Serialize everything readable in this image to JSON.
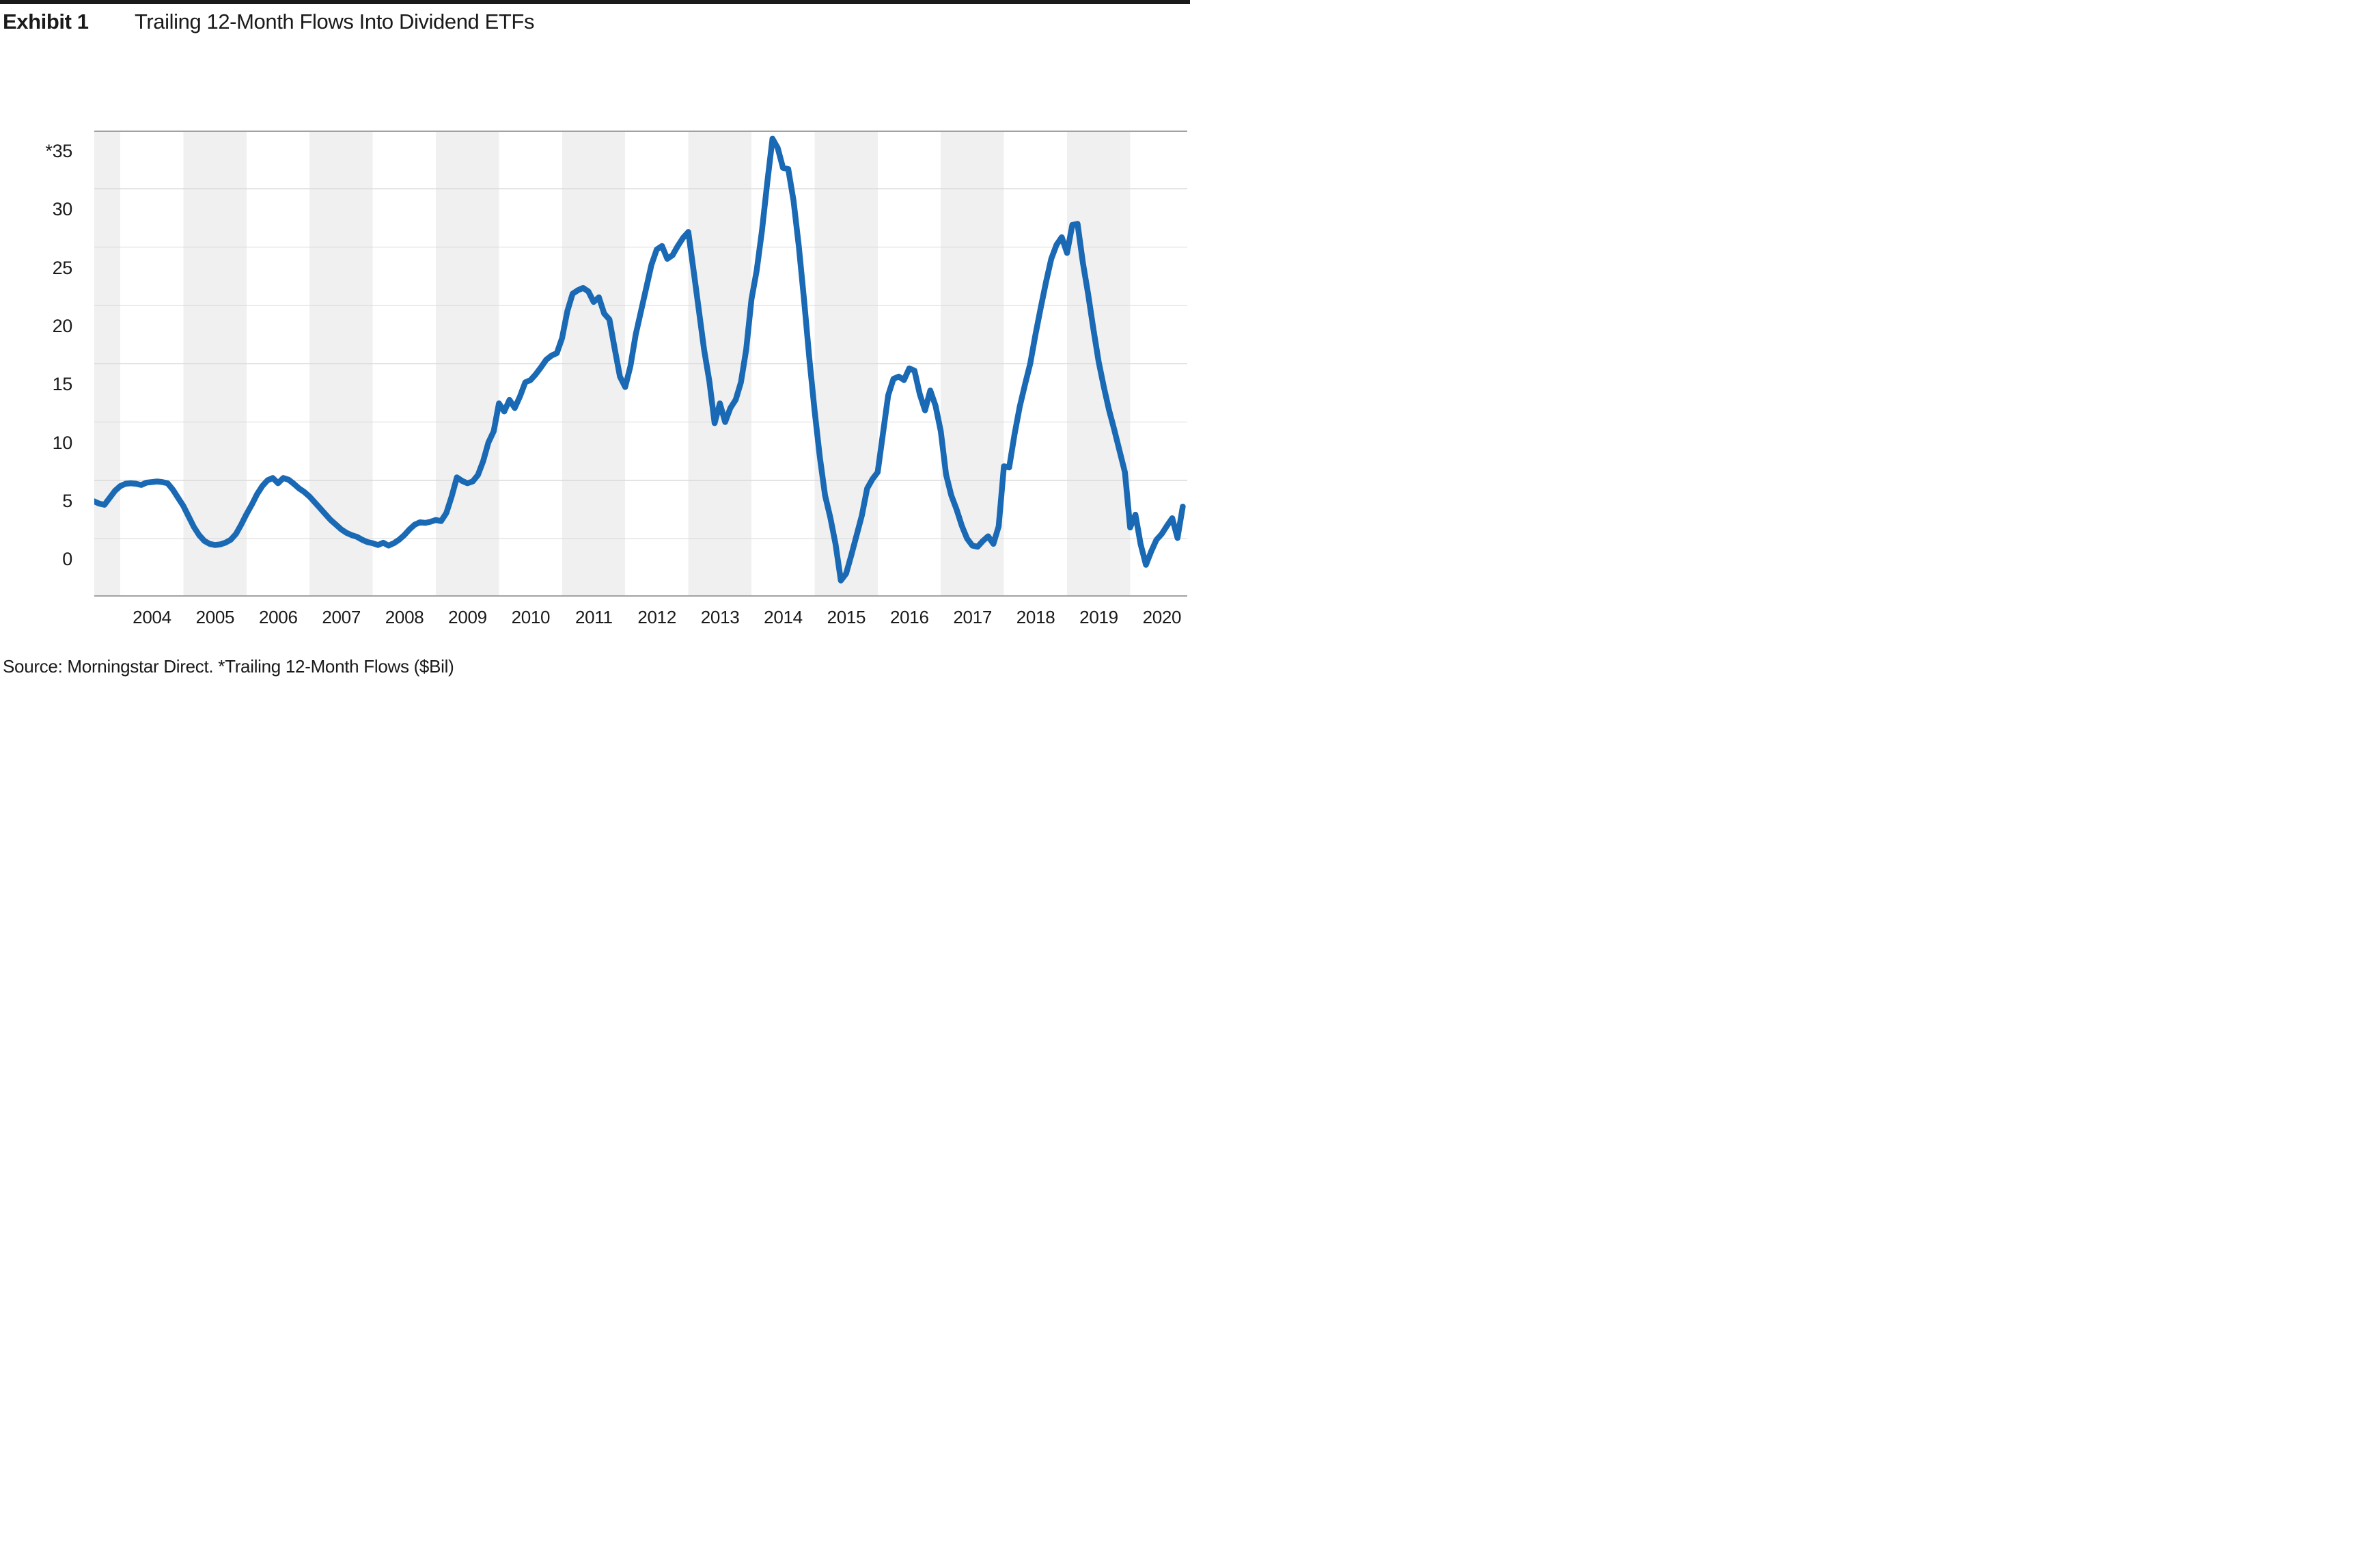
{
  "page": {
    "top_bar_color": "#1a1a1a",
    "background_color": "#ffffff"
  },
  "header": {
    "exhibit_label": "Exhibit 1",
    "title": "Trailing 12-Month Flows Into Dividend ETFs"
  },
  "source_note": "Source: Morningstar Direct. *Trailing 12-Month Flows ($Bil)",
  "chart_data": {
    "type": "line",
    "title": "Trailing 12-Month Flows Into Dividend ETFs",
    "unit": "$Bil",
    "xlabel": "",
    "ylabel": "Trailing 12-Month Flows ($Bil)",
    "ylim": [
      -5,
      35
    ],
    "y_tick_step": 5,
    "y_tick_labels": [
      "*35",
      "30",
      "25",
      "20",
      "15",
      "10",
      "5",
      "0"
    ],
    "x_tick_labels": [
      "2004",
      "2005",
      "2006",
      "2007",
      "2008",
      "2009",
      "2010",
      "2011",
      "2012",
      "2013",
      "2014",
      "2015",
      "2016",
      "2017",
      "2018",
      "2019",
      "2020"
    ],
    "grid": "horizontal",
    "alternating_year_bands": true,
    "tick_labels_below_gridlines": true,
    "legend": "none",
    "styles": {
      "line_color": "#1a69b4",
      "band_color": "#f0f0f0",
      "grid_color": "#d7d7d7",
      "axis_line_color": "#a2a2a2",
      "text_color": "#1a1a1a"
    },
    "series": [
      {
        "name": "Trailing 12-month flows into dividend ETFs ($Bil)",
        "frequency": "monthly",
        "x_start": {
          "year": 2003,
          "month": 8
        },
        "x_end": {
          "year": 2020,
          "month": 11
        },
        "values": [
          3.2,
          3.0,
          2.9,
          3.5,
          4.1,
          4.5,
          4.7,
          4.75,
          4.7,
          4.6,
          4.8,
          4.85,
          4.9,
          4.85,
          4.75,
          4.2,
          3.5,
          2.8,
          1.9,
          1.0,
          0.3,
          -0.2,
          -0.45,
          -0.55,
          -0.5,
          -0.35,
          -0.1,
          0.4,
          1.2,
          2.1,
          2.9,
          3.8,
          4.5,
          5.0,
          5.2,
          4.75,
          5.2,
          5.05,
          4.7,
          4.3,
          4.0,
          3.6,
          3.1,
          2.6,
          2.1,
          1.6,
          1.2,
          0.8,
          0.5,
          0.3,
          0.15,
          -0.1,
          -0.3,
          -0.4,
          -0.55,
          -0.35,
          -0.6,
          -0.4,
          -0.1,
          0.3,
          0.8,
          1.2,
          1.4,
          1.35,
          1.45,
          1.6,
          1.5,
          2.2,
          3.6,
          5.25,
          4.95,
          4.75,
          4.9,
          5.45,
          6.65,
          8.25,
          9.2,
          11.6,
          10.9,
          11.9,
          11.2,
          12.2,
          13.4,
          13.6,
          14.1,
          14.7,
          15.35,
          15.7,
          15.9,
          17.2,
          19.5,
          21.0,
          21.3,
          21.5,
          21.2,
          20.3,
          20.7,
          19.3,
          18.8,
          16.3,
          13.9,
          13.0,
          14.8,
          17.5,
          19.5,
          21.5,
          23.5,
          24.8,
          25.1,
          24.0,
          24.3,
          25.1,
          25.8,
          26.3,
          23.0,
          19.6,
          16.2,
          13.5,
          9.9,
          11.6,
          10.0,
          11.2,
          11.9,
          13.4,
          16.2,
          20.5,
          23.0,
          26.4,
          30.5,
          34.3,
          33.5,
          31.8,
          31.7,
          29.0,
          25.1,
          20.5,
          15.5,
          11.0,
          7.0,
          3.7,
          1.8,
          -0.5,
          -3.6,
          -3.0,
          -1.4,
          0.3,
          2.0,
          4.3,
          5.1,
          5.7,
          9.0,
          12.3,
          13.7,
          13.9,
          13.6,
          14.6,
          14.4,
          12.4,
          11.0,
          12.7,
          11.4,
          9.2,
          5.5,
          3.7,
          2.5,
          1.1,
          0.0,
          -0.6,
          -0.7,
          -0.2,
          0.2,
          -0.45,
          1.05,
          6.2,
          6.1,
          8.9,
          11.3,
          13.2,
          15.0,
          17.5,
          19.8,
          22.0,
          24.0,
          25.2,
          25.85,
          24.5,
          26.9,
          27.0,
          23.7,
          21.0,
          18.0,
          15.2,
          13.0,
          11.0,
          9.3,
          7.5,
          5.7,
          0.95,
          2.05,
          -0.5,
          -2.25,
          -1.1,
          -0.1,
          0.4,
          1.1,
          1.75,
          0.05,
          2.75
        ]
      }
    ]
  }
}
